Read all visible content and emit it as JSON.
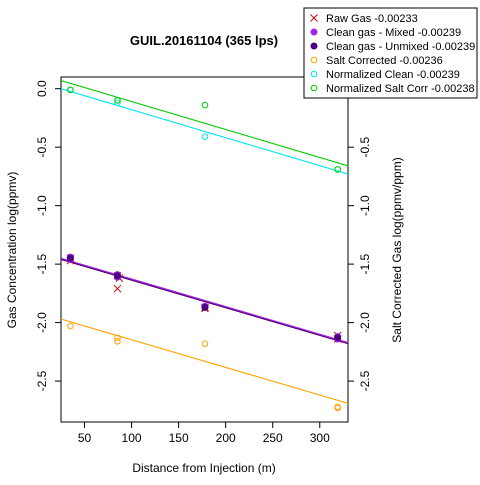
{
  "chart_data": {
    "type": "scatter",
    "title": "GUIL.20161104 (365 lps)",
    "xlabel": "Distance from Injection (m)",
    "ylabel": "Gas Concentration log(ppmv)",
    "y2label": "Salt Corrected Gas log(ppmv/ppm)",
    "xlim": [
      25,
      330
    ],
    "ylim": [
      -2.85,
      0.1
    ],
    "xticks": [
      50,
      100,
      150,
      200,
      250,
      300
    ],
    "yticks": [
      0.0,
      -0.5,
      -1.0,
      -1.5,
      -2.0,
      -2.5
    ],
    "y2ticks": [
      -0.5,
      -1.0,
      -1.5,
      -2.0,
      -2.5
    ],
    "xtick_labels": [
      "50",
      "100",
      "150",
      "200",
      "250",
      "300"
    ],
    "ytick_labels": [
      "0.0",
      "-0.5",
      "-1.0",
      "-1.5",
      "-2.0",
      "-2.5"
    ],
    "y2tick_labels": [
      "-0.5",
      "-1.0",
      "-1.5",
      "-2.0",
      "-2.5"
    ],
    "legend_position": "top-right",
    "grid": false,
    "series": [
      {
        "name": "Raw Gas -0.00233",
        "marker": "x",
        "color": "#cc0000",
        "x": [
          35,
          35,
          85,
          85,
          87,
          178,
          178,
          319,
          319
        ],
        "y": [
          -1.45,
          -1.47,
          -1.71,
          -1.6,
          -1.62,
          -1.87,
          -1.88,
          -2.11,
          -2.14
        ],
        "fit": {
          "x": [
            25,
            330
          ],
          "y": [
            -1.46,
            -2.18
          ]
        }
      },
      {
        "name": "Clean gas - Mixed -0.00239",
        "marker": "dot",
        "color": "#a020f0",
        "x": [
          35,
          35,
          85,
          85,
          178,
          178,
          319,
          319
        ],
        "y": [
          -1.44,
          -1.46,
          -1.59,
          -1.61,
          -1.86,
          -1.87,
          -2.12,
          -2.14
        ],
        "fit": {
          "x": [
            25,
            330
          ],
          "y": [
            -1.45,
            -2.17
          ]
        }
      },
      {
        "name": "Clean gas - Unmixed -0.00239",
        "marker": "dot",
        "color": "#4b0082",
        "x": [
          35,
          85,
          178,
          319
        ],
        "y": [
          -1.45,
          -1.6,
          -1.87,
          -2.13
        ],
        "fit": {
          "x": [
            25,
            330
          ],
          "y": [
            -1.46,
            -2.18
          ]
        }
      },
      {
        "name": "Salt Corrected -0.00236",
        "marker": "circle",
        "color": "#ffa500",
        "x": [
          35,
          85,
          85,
          178,
          319,
          319
        ],
        "y": [
          -2.03,
          -2.13,
          -2.16,
          -2.18,
          -2.72,
          -2.73
        ],
        "fit": {
          "x": [
            25,
            330
          ],
          "y": [
            -1.97,
            -2.69
          ]
        }
      },
      {
        "name": "Normalized Clean -0.00239",
        "marker": "circle",
        "color": "#00e5ee",
        "x": [
          35,
          85,
          178,
          319
        ],
        "y": [
          -0.01,
          -0.12,
          -0.41,
          -0.69
        ],
        "fit": {
          "x": [
            25,
            330
          ],
          "y": [
            0.0,
            -0.73
          ]
        }
      },
      {
        "name": "Normalized Salt Corr -0.00238",
        "marker": "circle",
        "color": "#00cc00",
        "x": [
          35,
          85,
          178,
          319
        ],
        "y": [
          -0.01,
          -0.1,
          -0.14,
          -0.69
        ],
        "fit": {
          "x": [
            25,
            330
          ],
          "y": [
            0.07,
            -0.66
          ]
        }
      }
    ]
  }
}
